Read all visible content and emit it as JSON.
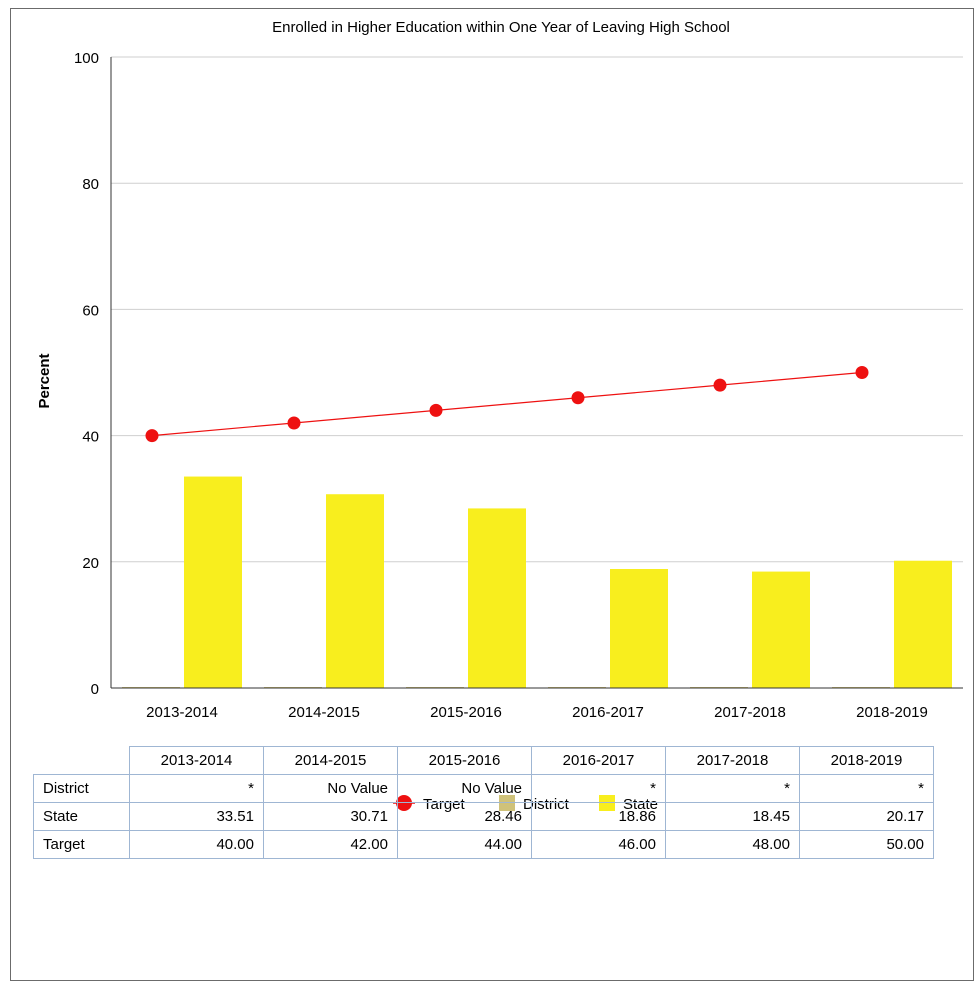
{
  "chart_data": {
    "type": "bar",
    "title": "Enrolled in Higher Education within One Year of Leaving High School",
    "ylabel": "Percent",
    "xlabel": "",
    "ylim": [
      0,
      100
    ],
    "yticks": [
      0,
      20,
      40,
      60,
      80,
      100
    ],
    "grid": true,
    "legend_position": "bottom-center",
    "categories": [
      "2013-2014",
      "2014-2015",
      "2015-2016",
      "2016-2017",
      "2017-2018",
      "2018-2019"
    ],
    "series": [
      {
        "name": "Target",
        "kind": "line",
        "color": "#ee1111",
        "values": [
          40.0,
          42.0,
          44.0,
          46.0,
          48.0,
          50.0
        ]
      },
      {
        "name": "District",
        "kind": "bar",
        "color": "#cfc27a",
        "values": [
          null,
          null,
          null,
          null,
          null,
          null
        ]
      },
      {
        "name": "State",
        "kind": "bar",
        "color": "#f8ee1e",
        "values": [
          33.51,
          30.71,
          28.46,
          18.86,
          18.45,
          20.17
        ]
      }
    ]
  },
  "table": {
    "headers": [
      "2013-2014",
      "2014-2015",
      "2015-2016",
      "2016-2017",
      "2017-2018",
      "2018-2019"
    ],
    "rows": [
      {
        "label": "District",
        "cells": [
          "*",
          "No Value",
          "No Value",
          "*",
          "*",
          "*"
        ]
      },
      {
        "label": "State",
        "cells": [
          "33.51",
          "30.71",
          "28.46",
          "18.86",
          "18.45",
          "20.17"
        ]
      },
      {
        "label": "Target",
        "cells": [
          "40.00",
          "42.00",
          "44.00",
          "46.00",
          "48.00",
          "50.00"
        ]
      }
    ]
  }
}
